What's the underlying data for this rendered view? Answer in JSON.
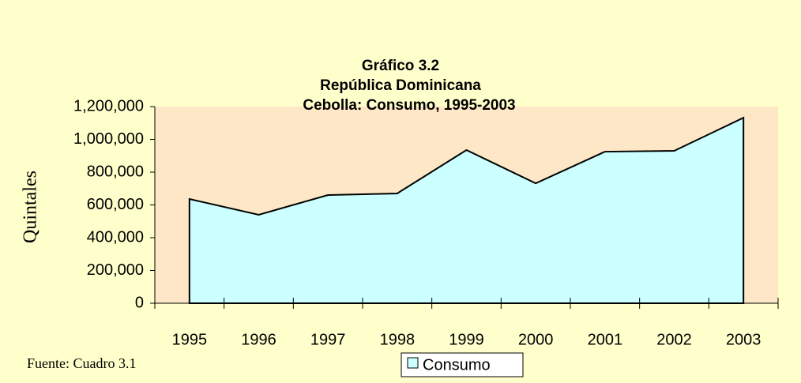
{
  "chart_data": {
    "type": "area",
    "title": [
      "Gráfico 3.2",
      "República Dominicana",
      "Cebolla: Consumo, 1995-2003"
    ],
    "y_label": "Quintales",
    "source": "Fuente: Cuadro 3.1",
    "categories": [
      "1995",
      "1996",
      "1997",
      "1998",
      "1999",
      "2000",
      "2001",
      "2002",
      "2003"
    ],
    "series": [
      {
        "name": "Consumo",
        "color": "#ccffff",
        "values": [
          636000,
          540000,
          660000,
          670000,
          935000,
          732000,
          925000,
          930000,
          1132000
        ]
      }
    ],
    "ylim": [
      0,
      1200000
    ],
    "yticks": [
      0,
      {
        "value": 200000,
        "label": "200,000"
      },
      {
        "value": 400000,
        "label": "400,000"
      },
      {
        "value": 600000,
        "label": "600,000"
      },
      {
        "value": 800000,
        "label": "800,000"
      },
      {
        "value": 1000000,
        "label": "1,000,000"
      },
      {
        "value": 1200000,
        "label": "1,200,000"
      }
    ],
    "grid": false
  }
}
